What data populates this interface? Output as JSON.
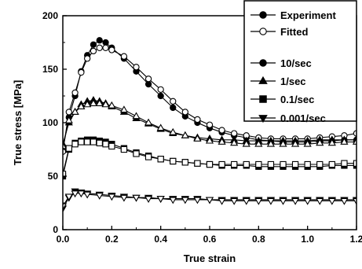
{
  "chart_data": {
    "type": "line",
    "xlabel": "True strain",
    "ylabel": "True stress [MPa]",
    "xlim": [
      0.0,
      1.2
    ],
    "ylim": [
      0,
      200
    ],
    "xticks": [
      "0.0",
      "0.2",
      "0.4",
      "0.6",
      "0.8",
      "1.0",
      "1.2"
    ],
    "yticks": [
      "0",
      "50",
      "100",
      "150",
      "200"
    ],
    "grid": false,
    "legend_position": "top-right",
    "legend": [
      {
        "label": "Experiment",
        "marker": "circle",
        "filled": true
      },
      {
        "label": "Fitted",
        "marker": "circle",
        "filled": false
      },
      {
        "label": "10/sec",
        "marker": "circle",
        "filled": true
      },
      {
        "label": "1/sec",
        "marker": "triangle-up",
        "filled": true
      },
      {
        "label": "0.1/sec",
        "marker": "square",
        "filled": true
      },
      {
        "label": "0.001/sec",
        "marker": "triangle-down",
        "filled": true
      }
    ],
    "series": [
      {
        "rate": "10/sec",
        "kind": "experiment",
        "marker": "circle",
        "filled": true,
        "x": [
          0,
          0.025,
          0.05,
          0.075,
          0.1,
          0.125,
          0.15,
          0.175,
          0.2,
          0.25,
          0.3,
          0.35,
          0.4,
          0.45,
          0.5,
          0.55,
          0.6,
          0.65,
          0.7,
          0.75,
          0.8,
          0.85,
          0.9,
          0.95,
          1.0,
          1.05,
          1.1,
          1.15,
          1.2
        ],
        "y": [
          75,
          105,
          125,
          148,
          163,
          173,
          177,
          175,
          170,
          160,
          148,
          136,
          125,
          114,
          106,
          100,
          95,
          91,
          88,
          86,
          84,
          83,
          82,
          82,
          82,
          83,
          83,
          84,
          84
        ]
      },
      {
        "rate": "10/sec",
        "kind": "fitted",
        "marker": "circle",
        "filled": false,
        "x": [
          0,
          0.025,
          0.05,
          0.075,
          0.1,
          0.125,
          0.15,
          0.175,
          0.2,
          0.25,
          0.3,
          0.35,
          0.4,
          0.45,
          0.5,
          0.55,
          0.6,
          0.65,
          0.7,
          0.75,
          0.8,
          0.85,
          0.9,
          0.95,
          1.0,
          1.05,
          1.1,
          1.15,
          1.2
        ],
        "y": [
          73,
          110,
          128,
          147,
          160,
          167,
          170,
          170,
          168,
          162,
          152,
          141,
          131,
          120,
          110,
          103,
          98,
          93,
          90,
          88,
          86,
          85,
          85,
          85,
          85,
          86,
          87,
          88,
          90
        ]
      },
      {
        "rate": "1/sec",
        "kind": "experiment",
        "marker": "triangle-up",
        "filled": true,
        "x": [
          0,
          0.025,
          0.05,
          0.075,
          0.1,
          0.125,
          0.15,
          0.175,
          0.2,
          0.25,
          0.3,
          0.35,
          0.4,
          0.45,
          0.5,
          0.55,
          0.6,
          0.65,
          0.7,
          0.75,
          0.8,
          0.85,
          0.9,
          0.95,
          1.0,
          1.05,
          1.1,
          1.15,
          1.2
        ],
        "y": [
          80,
          100,
          110,
          117,
          120,
          121,
          120,
          118,
          115,
          110,
          104,
          99,
          94,
          90,
          88,
          86,
          85,
          84,
          84,
          83,
          83,
          83,
          83,
          83,
          83,
          84,
          84,
          84,
          84
        ]
      },
      {
        "rate": "1/sec",
        "kind": "fitted",
        "marker": "triangle-up",
        "filled": false,
        "x": [
          0,
          0.025,
          0.05,
          0.075,
          0.1,
          0.125,
          0.15,
          0.175,
          0.2,
          0.25,
          0.3,
          0.35,
          0.4,
          0.45,
          0.5,
          0.55,
          0.6,
          0.65,
          0.7,
          0.75,
          0.8,
          0.85,
          0.9,
          0.95,
          1.0,
          1.05,
          1.1,
          1.15,
          1.2
        ],
        "y": [
          78,
          102,
          110,
          115,
          117,
          118,
          118,
          117,
          116,
          112,
          106,
          100,
          95,
          91,
          88,
          85,
          83,
          82,
          81,
          80,
          80,
          80,
          80,
          80,
          80,
          81,
          81,
          82,
          82
        ]
      },
      {
        "rate": "0.1/sec",
        "kind": "experiment",
        "marker": "square",
        "filled": true,
        "x": [
          0,
          0.025,
          0.05,
          0.075,
          0.1,
          0.125,
          0.15,
          0.175,
          0.2,
          0.25,
          0.3,
          0.35,
          0.4,
          0.45,
          0.5,
          0.55,
          0.6,
          0.65,
          0.7,
          0.75,
          0.8,
          0.85,
          0.9,
          0.95,
          1.0,
          1.05,
          1.1,
          1.15,
          1.2
        ],
        "y": [
          50,
          75,
          81,
          83,
          84,
          84,
          83,
          82,
          80,
          76,
          72,
          69,
          66,
          64,
          63,
          62,
          61,
          60,
          60,
          60,
          59,
          59,
          59,
          59,
          59,
          59,
          60,
          60,
          60
        ]
      },
      {
        "rate": "0.1/sec",
        "kind": "fitted",
        "marker": "square",
        "filled": false,
        "x": [
          0,
          0.025,
          0.05,
          0.075,
          0.1,
          0.125,
          0.15,
          0.175,
          0.2,
          0.25,
          0.3,
          0.35,
          0.4,
          0.45,
          0.5,
          0.55,
          0.6,
          0.65,
          0.7,
          0.75,
          0.8,
          0.85,
          0.9,
          0.95,
          1.0,
          1.05,
          1.1,
          1.15,
          1.2
        ],
        "y": [
          52,
          76,
          80,
          82,
          82,
          82,
          81,
          80,
          78,
          75,
          71,
          68,
          66,
          64,
          63,
          62,
          61,
          61,
          61,
          61,
          61,
          61,
          61,
          61,
          61,
          61,
          61,
          62,
          62
        ]
      },
      {
        "rate": "0.001/sec",
        "kind": "experiment",
        "marker": "triangle-down",
        "filled": true,
        "x": [
          0,
          0.025,
          0.05,
          0.075,
          0.1,
          0.15,
          0.2,
          0.25,
          0.3,
          0.35,
          0.4,
          0.45,
          0.5,
          0.55,
          0.6,
          0.65,
          0.7,
          0.75,
          0.8,
          0.85,
          0.9,
          0.95,
          1.0,
          1.05,
          1.1,
          1.15,
          1.2
        ],
        "y": [
          20,
          30,
          36,
          35,
          34,
          33,
          32,
          31,
          30,
          30,
          29,
          29,
          29,
          29,
          28,
          28,
          28,
          28,
          28,
          28,
          28,
          28,
          28,
          28,
          28,
          28,
          28
        ]
      },
      {
        "rate": "0.001/sec",
        "kind": "fitted",
        "marker": "triangle-down",
        "filled": false,
        "x": [
          0,
          0.025,
          0.05,
          0.075,
          0.1,
          0.15,
          0.2,
          0.25,
          0.3,
          0.35,
          0.4,
          0.45,
          0.5,
          0.55,
          0.6,
          0.65,
          0.7,
          0.75,
          0.8,
          0.85,
          0.9,
          0.95,
          1.0,
          1.05,
          1.1,
          1.15,
          1.2
        ],
        "y": [
          22,
          31,
          34,
          34,
          33,
          32,
          31,
          30,
          30,
          29,
          29,
          28,
          28,
          28,
          28,
          27,
          27,
          27,
          27,
          27,
          27,
          27,
          27,
          27,
          27,
          27,
          27
        ]
      }
    ]
  }
}
